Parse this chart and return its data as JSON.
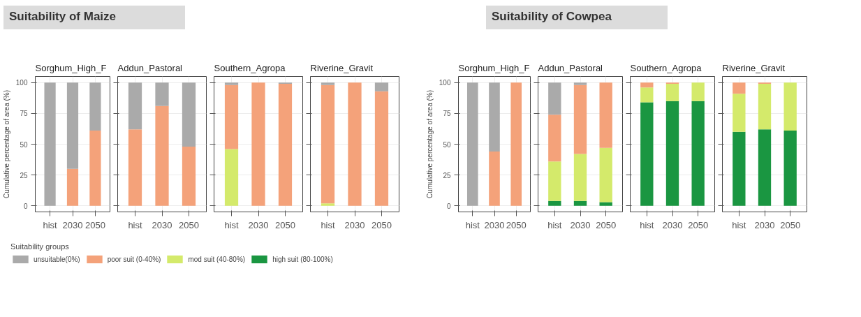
{
  "chart_data": [
    {
      "type": "bar",
      "stacked": true,
      "title": "Sorghum_High_F",
      "annotations": [
        "Suitability of Maize"
      ],
      "ylabel": "Cumulative percentage of area (%)",
      "categories": [
        "hist",
        "2030",
        "2050"
      ],
      "ylim": [
        -5,
        105
      ],
      "yticks": [
        0,
        25,
        50,
        75,
        100
      ],
      "grid": true,
      "legend": "bottom",
      "legend_title": "Suitability groups",
      "series": [
        {
          "name": "high suit (80-100%)",
          "color": "#1a9641",
          "values": [
            0,
            0,
            0
          ]
        },
        {
          "name": "mod suit (40-80%)",
          "color": "#d4ea6b",
          "values": [
            0,
            0,
            0
          ]
        },
        {
          "name": "poor suit (0-40%)",
          "color": "#f4a27a",
          "values": [
            0,
            30,
            61
          ]
        },
        {
          "name": "unsuitable(0%)",
          "color": "#aaaaaa",
          "values": [
            100,
            70,
            39
          ]
        }
      ]
    },
    {
      "type": "bar",
      "stacked": true,
      "title": "Addun_Pastoral",
      "categories": [
        "hist",
        "2030",
        "2050"
      ],
      "ylim": [
        -5,
        105
      ],
      "yticks": [
        0,
        25,
        50,
        75,
        100
      ],
      "grid": true,
      "tick_labels": "x",
      "series": [
        {
          "color": "#1a9641",
          "values": [
            0,
            0,
            0
          ]
        },
        {
          "color": "#d4ea6b",
          "values": [
            0,
            0,
            0
          ]
        },
        {
          "color": "#f4a27a",
          "values": [
            62,
            81,
            48
          ]
        },
        {
          "color": "#aaaaaa",
          "values": [
            38,
            19,
            52
          ]
        }
      ]
    },
    {
      "type": "bar",
      "stacked": true,
      "title": "Southern_Agropa",
      "categories": [
        "hist",
        "2030",
        "2050"
      ],
      "ylim": [
        -5,
        105
      ],
      "yticks": [
        0,
        25,
        50,
        75,
        100
      ],
      "grid": true,
      "tick_labels": "x",
      "series": [
        {
          "color": "#1a9641",
          "values": [
            0,
            0,
            0
          ]
        },
        {
          "color": "#d4ea6b",
          "values": [
            46,
            0,
            0
          ]
        },
        {
          "color": "#f4a27a",
          "values": [
            52,
            100,
            99
          ]
        },
        {
          "color": "#aaaaaa",
          "values": [
            2,
            0,
            1
          ]
        }
      ]
    },
    {
      "type": "bar",
      "stacked": true,
      "title": "Riverine_Gravit",
      "categories": [
        "hist",
        "2030",
        "2050"
      ],
      "ylim": [
        -5,
        105
      ],
      "yticks": [
        0,
        25,
        50,
        75,
        100
      ],
      "grid": true,
      "tick_labels": "x",
      "series": [
        {
          "color": "#1a9641",
          "values": [
            0,
            0,
            0
          ]
        },
        {
          "color": "#d4ea6b",
          "values": [
            2,
            0,
            0
          ]
        },
        {
          "color": "#f4a27a",
          "values": [
            96,
            100,
            93
          ]
        },
        {
          "color": "#aaaaaa",
          "values": [
            2,
            0,
            7
          ]
        }
      ]
    },
    {
      "type": "bar",
      "stacked": true,
      "title": "Sorghum_High_F",
      "annotations": [
        "Suitability of Cowpea"
      ],
      "ylabel": "Cumulative percentage of area (%)",
      "categories": [
        "hist",
        "2030",
        "2050"
      ],
      "ylim": [
        -5,
        105
      ],
      "yticks": [
        0,
        25,
        50,
        75,
        100
      ],
      "grid": true,
      "series": [
        {
          "color": "#1a9641",
          "values": [
            0,
            0,
            0
          ]
        },
        {
          "color": "#d4ea6b",
          "values": [
            0,
            0,
            0
          ]
        },
        {
          "color": "#f4a27a",
          "values": [
            0,
            44,
            100
          ]
        },
        {
          "color": "#aaaaaa",
          "values": [
            100,
            56,
            0
          ]
        }
      ]
    },
    {
      "type": "bar",
      "stacked": true,
      "title": "Addun_Pastoral",
      "categories": [
        "hist",
        "2030",
        "2050"
      ],
      "ylim": [
        -5,
        105
      ],
      "yticks": [
        0,
        25,
        50,
        75,
        100
      ],
      "grid": true,
      "tick_labels": "x",
      "series": [
        {
          "color": "#1a9641",
          "values": [
            4,
            4,
            3
          ]
        },
        {
          "color": "#d4ea6b",
          "values": [
            32,
            38,
            44
          ]
        },
        {
          "color": "#f4a27a",
          "values": [
            38,
            56,
            53
          ]
        },
        {
          "color": "#aaaaaa",
          "values": [
            26,
            2,
            0
          ]
        }
      ]
    },
    {
      "type": "bar",
      "stacked": true,
      "title": "Southern_Agropa",
      "categories": [
        "hist",
        "2030",
        "2050"
      ],
      "ylim": [
        -5,
        105
      ],
      "yticks": [
        0,
        25,
        50,
        75,
        100
      ],
      "grid": true,
      "tick_labels": "x",
      "series": [
        {
          "color": "#1a9641",
          "values": [
            84,
            85,
            85
          ]
        },
        {
          "color": "#d4ea6b",
          "values": [
            12,
            14,
            15
          ]
        },
        {
          "color": "#f4a27a",
          "values": [
            4,
            1,
            0
          ]
        },
        {
          "color": "#aaaaaa",
          "values": [
            0,
            0,
            0
          ]
        }
      ]
    },
    {
      "type": "bar",
      "stacked": true,
      "title": "Riverine_Gravit",
      "categories": [
        "hist",
        "2030",
        "2050"
      ],
      "ylim": [
        -5,
        105
      ],
      "yticks": [
        0,
        25,
        50,
        75,
        100
      ],
      "grid": true,
      "tick_labels": "x",
      "series": [
        {
          "color": "#1a9641",
          "values": [
            60,
            62,
            61
          ]
        },
        {
          "color": "#d4ea6b",
          "values": [
            31,
            37,
            39
          ]
        },
        {
          "color": "#f4a27a",
          "values": [
            9,
            1,
            0
          ]
        },
        {
          "color": "#aaaaaa",
          "values": [
            0,
            0,
            0
          ]
        }
      ]
    }
  ]
}
